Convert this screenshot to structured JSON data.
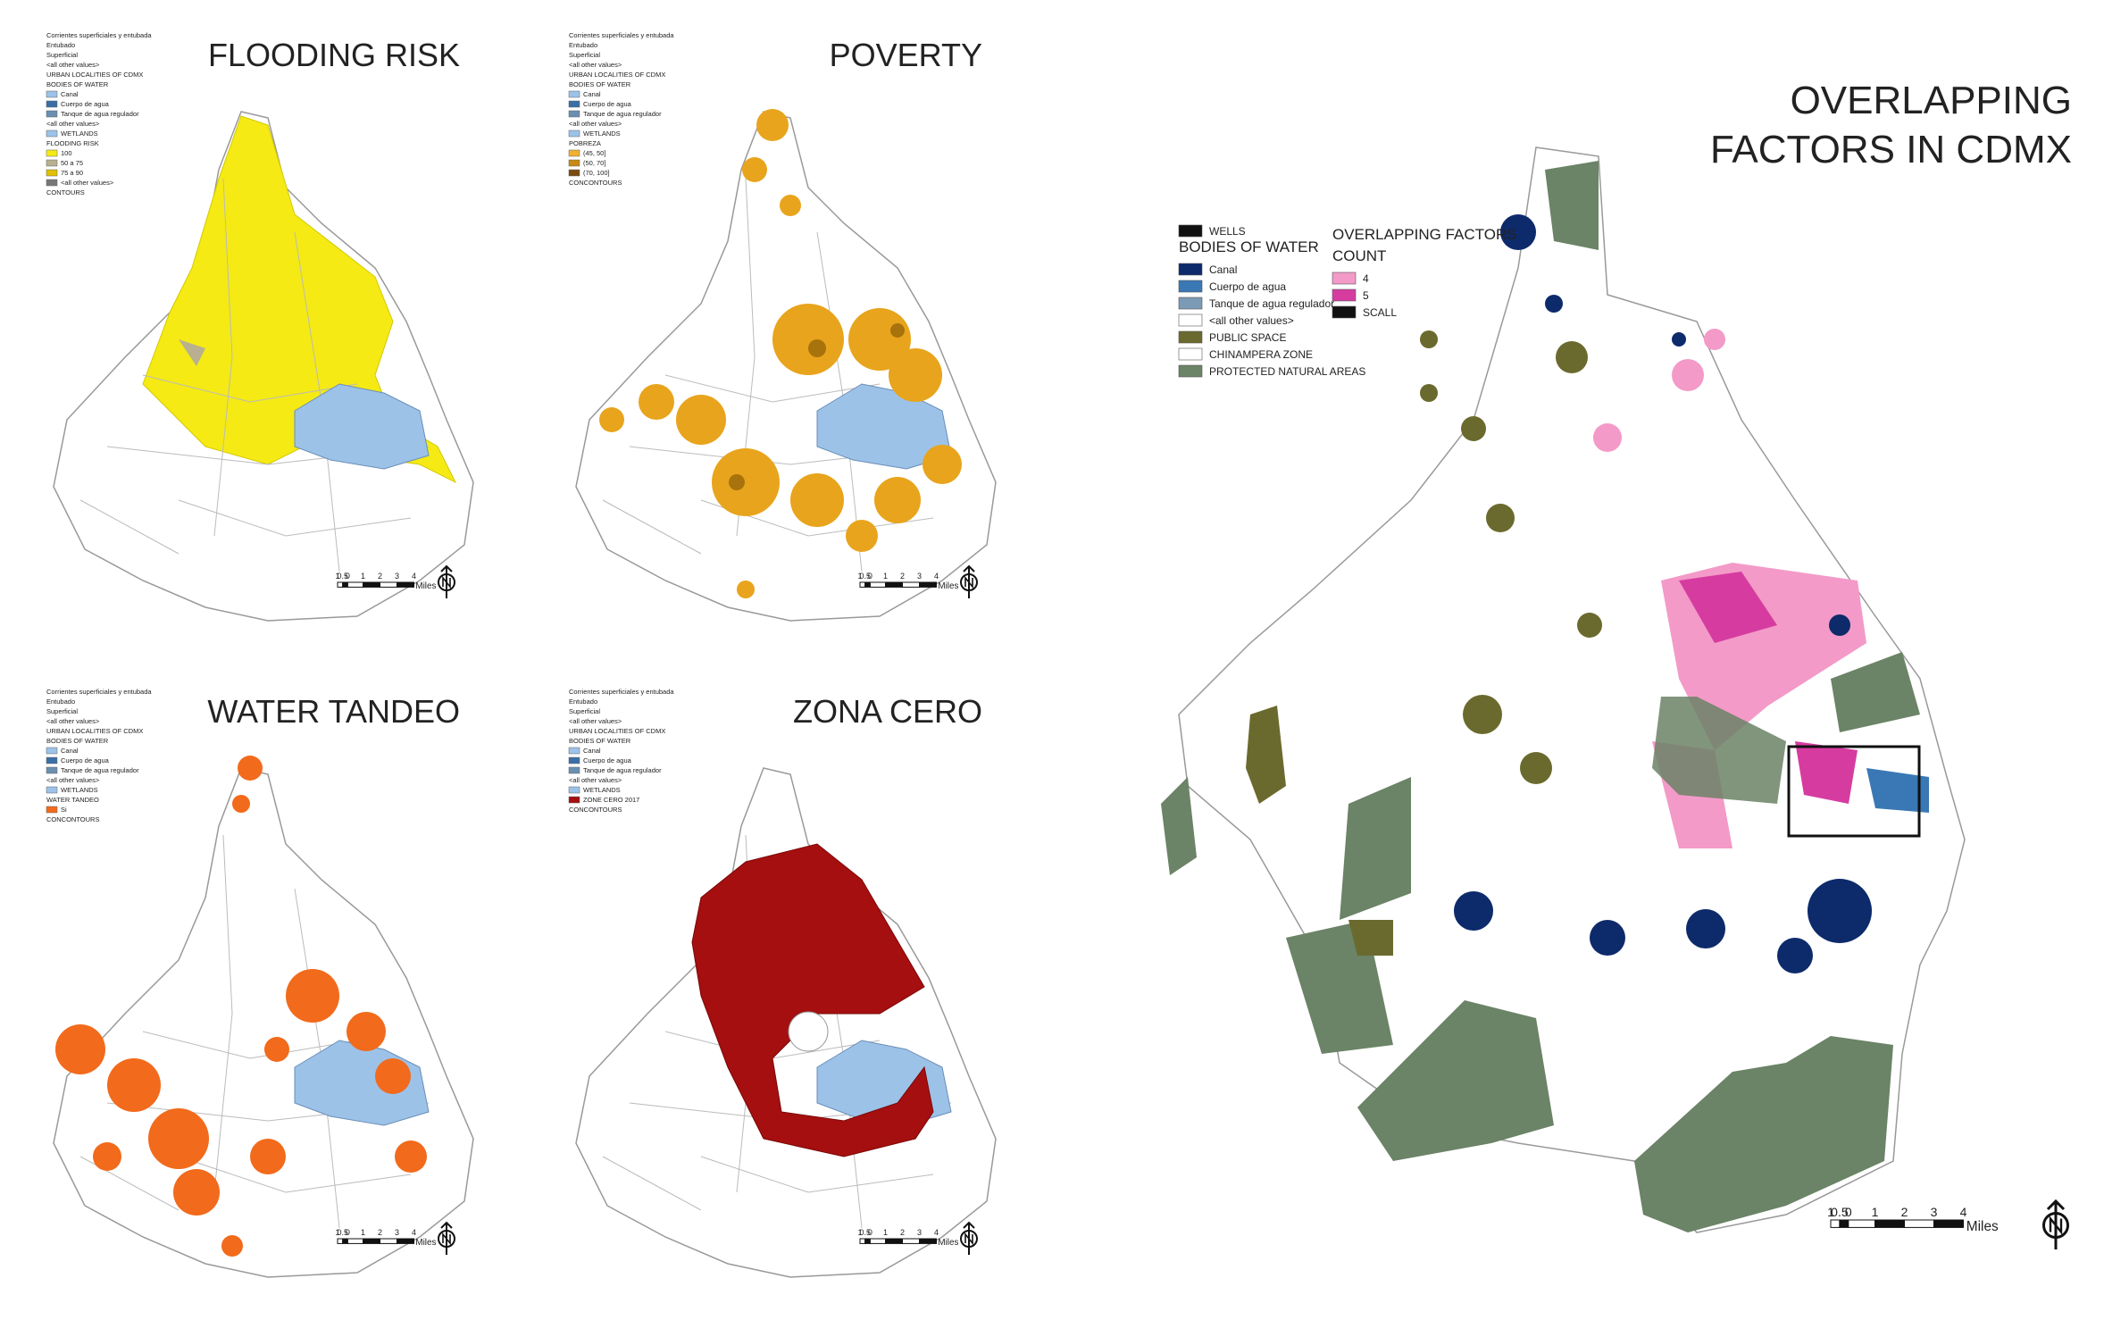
{
  "maps": [
    {
      "title": "FLOODING RISK",
      "legend": [
        {
          "text": "Corrientes superficiales y entubada"
        },
        {
          "text": "Entubado"
        },
        {
          "text": "Superficial"
        },
        {
          "text": "<all other values>"
        },
        {
          "text": "URBAN LOCALITIES OF CDMX"
        },
        {
          "text": "BODIES OF WATER"
        },
        {
          "text": "Canal",
          "color": "#9cc2e8"
        },
        {
          "text": "Cuerpo de agua",
          "color": "#3a6ea5"
        },
        {
          "text": "Tanque de agua regulador",
          "color": "#6b8fb0"
        },
        {
          "text": "<all other values>"
        },
        {
          "text": "WETLANDS",
          "color": "#9cc2e8"
        },
        {
          "text": "FLOODING RISK"
        },
        {
          "text": "100",
          "color": "#f5ea14"
        },
        {
          "text": "50 a 75",
          "color": "#b8b090"
        },
        {
          "text": "75 a 90",
          "color": "#e0c000"
        },
        {
          "text": "<all other values>",
          "color": "#777"
        },
        {
          "text": "CONTOURS"
        }
      ],
      "scale": [
        "1",
        "0.5",
        "0",
        "1",
        "2",
        "3",
        "4"
      ],
      "unit": "Miles"
    },
    {
      "title": "POVERTY",
      "legend": [
        {
          "text": "Corrientes superficiales y entubada"
        },
        {
          "text": "Entubado"
        },
        {
          "text": "Superficial"
        },
        {
          "text": "<all other values>"
        },
        {
          "text": "URBAN LOCALITIES OF CDMX"
        },
        {
          "text": "BODIES OF WATER"
        },
        {
          "text": "Canal",
          "color": "#9cc2e8"
        },
        {
          "text": "Cuerpo de agua",
          "color": "#3a6ea5"
        },
        {
          "text": "Tanque de agua regulador",
          "color": "#6b8fb0"
        },
        {
          "text": "<all other values>"
        },
        {
          "text": "WETLANDS",
          "color": "#9cc2e8"
        },
        {
          "text": "POBREZA"
        },
        {
          "text": "(45, 50]",
          "color": "#f0b030"
        },
        {
          "text": "(50, 70]",
          "color": "#c88a10"
        },
        {
          "text": "(70, 100]",
          "color": "#7a4a10"
        },
        {
          "text": "CONCONTOURS"
        }
      ],
      "scale": [
        "1",
        "0.5",
        "0",
        "1",
        "2",
        "3",
        "4"
      ],
      "unit": "Miles"
    },
    {
      "title": "WATER TANDEO",
      "legend": [
        {
          "text": "Corrientes superficiales y entubada"
        },
        {
          "text": "Entubado"
        },
        {
          "text": "Superficial"
        },
        {
          "text": "<all other values>"
        },
        {
          "text": "URBAN LOCALITIES OF CDMX"
        },
        {
          "text": "BODIES OF WATER"
        },
        {
          "text": "Canal",
          "color": "#9cc2e8"
        },
        {
          "text": "Cuerpo de agua",
          "color": "#3a6ea5"
        },
        {
          "text": "Tanque de agua regulador",
          "color": "#6b8fb0"
        },
        {
          "text": "<all other values>"
        },
        {
          "text": "WETLANDS",
          "color": "#9cc2e8"
        },
        {
          "text": "WATER TANDEO"
        },
        {
          "text": "Si",
          "color": "#f26a1b"
        },
        {
          "text": "CONCONTOURS"
        }
      ],
      "scale": [
        "1",
        "0.5",
        "0",
        "1",
        "2",
        "3",
        "4"
      ],
      "unit": "Miles"
    },
    {
      "title": "ZONA CERO",
      "legend": [
        {
          "text": "Corrientes superficiales y entubada"
        },
        {
          "text": "Entubado"
        },
        {
          "text": "Superficial"
        },
        {
          "text": "<all other values>"
        },
        {
          "text": "URBAN LOCALITIES OF CDMX"
        },
        {
          "text": "BODIES OF WATER"
        },
        {
          "text": "Canal",
          "color": "#9cc2e8"
        },
        {
          "text": "Cuerpo de agua",
          "color": "#3a6ea5"
        },
        {
          "text": "Tanque de agua regulador",
          "color": "#6b8fb0"
        },
        {
          "text": "<all other values>"
        },
        {
          "text": "WETLANDS",
          "color": "#9cc2e8"
        },
        {
          "text": "ZONE CERO 2017",
          "color": "#a50f0f"
        },
        {
          "text": "CONCONTOURS"
        }
      ],
      "scale": [
        "1",
        "0.5",
        "0",
        "1",
        "2",
        "3",
        "4"
      ],
      "unit": "Miles"
    }
  ],
  "main": {
    "title": [
      "OVERLAPPING",
      "FACTORS IN CDMX"
    ],
    "legend_left": [
      {
        "text": "WELLS",
        "color": "#111",
        "heading": false
      },
      {
        "text": "BODIES OF WATER",
        "heading": true
      },
      {
        "text": "Canal",
        "color": "#0d2a6b"
      },
      {
        "text": "Cuerpo de agua",
        "color": "#3a78b5"
      },
      {
        "text": "Tanque de agua regulador",
        "color": "#7b9ab5"
      },
      {
        "text": "<all other values>",
        "color": "#ffffff"
      },
      {
        "text": "PUBLIC SPACE",
        "color": "#6b6a2e"
      },
      {
        "text": "CHINAMPERA ZONE",
        "color": "#ffffff"
      },
      {
        "text": "PROTECTED NATURAL AREAS",
        "color": "#6b8366"
      }
    ],
    "legend_right": [
      {
        "text": "OVERLAPPING FACTORS",
        "heading": true
      },
      {
        "text": "COUNT",
        "heading": true
      },
      {
        "text": "4",
        "color": "#f39ac8"
      },
      {
        "text": "5",
        "color": "#d63ca0"
      },
      {
        "text": "SCALL",
        "color": "#111"
      }
    ],
    "scale": [
      "1",
      "0.5",
      "0",
      "1",
      "2",
      "3",
      "4"
    ],
    "unit": "Miles"
  }
}
